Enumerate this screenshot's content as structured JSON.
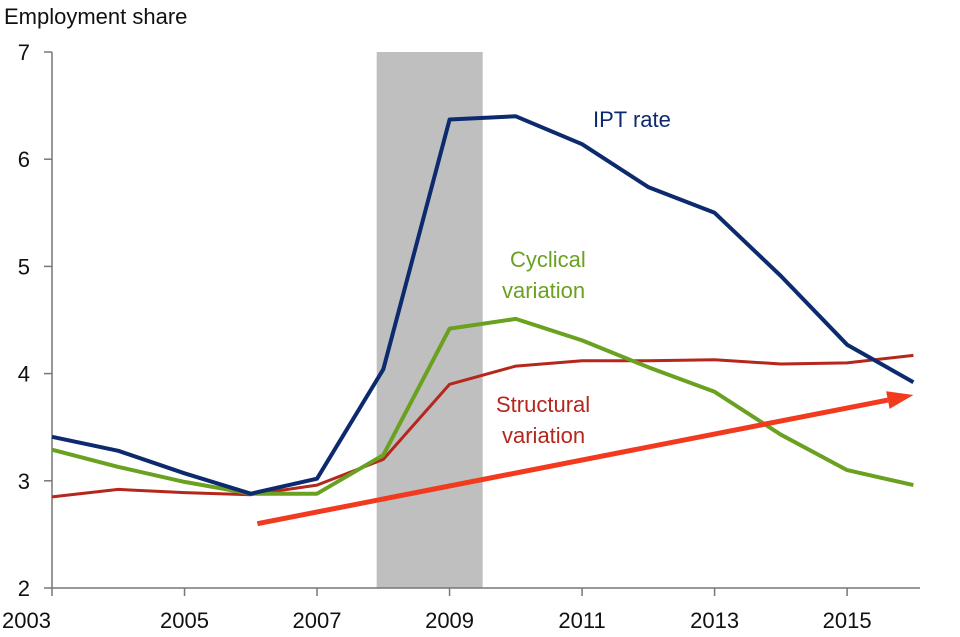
{
  "chart_data": {
    "type": "line",
    "ylabel": "Employment share",
    "xlim": [
      2003,
      2016.1
    ],
    "ylim": [
      2,
      7
    ],
    "x_ticks": [
      "2003",
      "2005",
      "2007",
      "2009",
      "2011",
      "2013",
      "2015"
    ],
    "y_ticks": [
      "2",
      "3",
      "4",
      "5",
      "6",
      "7"
    ],
    "recession_band": [
      2007.9,
      2009.5
    ],
    "series": [
      {
        "name": "IPT rate",
        "color": "#0d2a6e",
        "x": [
          2003,
          2004,
          2005,
          2006,
          2007,
          2008,
          2009,
          2010,
          2011,
          2012,
          2013,
          2014,
          2015,
          2016
        ],
        "y": [
          3.41,
          3.28,
          3.07,
          2.88,
          3.02,
          4.04,
          6.37,
          6.4,
          6.14,
          5.74,
          5.5,
          4.91,
          4.27,
          3.92
        ]
      },
      {
        "name": "Cyclical variation",
        "color": "#6aa121",
        "x": [
          2003,
          2004,
          2005,
          2006,
          2007,
          2008,
          2009,
          2010,
          2011,
          2012,
          2013,
          2014,
          2015,
          2016
        ],
        "y": [
          3.29,
          3.13,
          2.99,
          2.88,
          2.88,
          3.24,
          4.42,
          4.51,
          4.31,
          4.06,
          3.83,
          3.43,
          3.1,
          2.96
        ]
      },
      {
        "name": "Structural variation",
        "color": "#b5261c",
        "x": [
          2003,
          2004,
          2005,
          2006,
          2007,
          2008,
          2009,
          2010,
          2011,
          2012,
          2013,
          2014,
          2015,
          2016
        ],
        "y": [
          2.85,
          2.92,
          2.89,
          2.87,
          2.96,
          3.2,
          3.9,
          4.07,
          4.12,
          4.12,
          4.13,
          4.09,
          4.1,
          4.17
        ]
      }
    ],
    "annotations": {
      "ipt": "IPT rate",
      "cyclical_1": "Cyclical",
      "cyclical_2": "variation",
      "structural_1": "Structural",
      "structural_2": "variation"
    },
    "trend_arrow": {
      "from": [
        2006.1,
        2.6
      ],
      "to": [
        2016,
        3.8
      ],
      "color": "#f23a1f"
    }
  }
}
